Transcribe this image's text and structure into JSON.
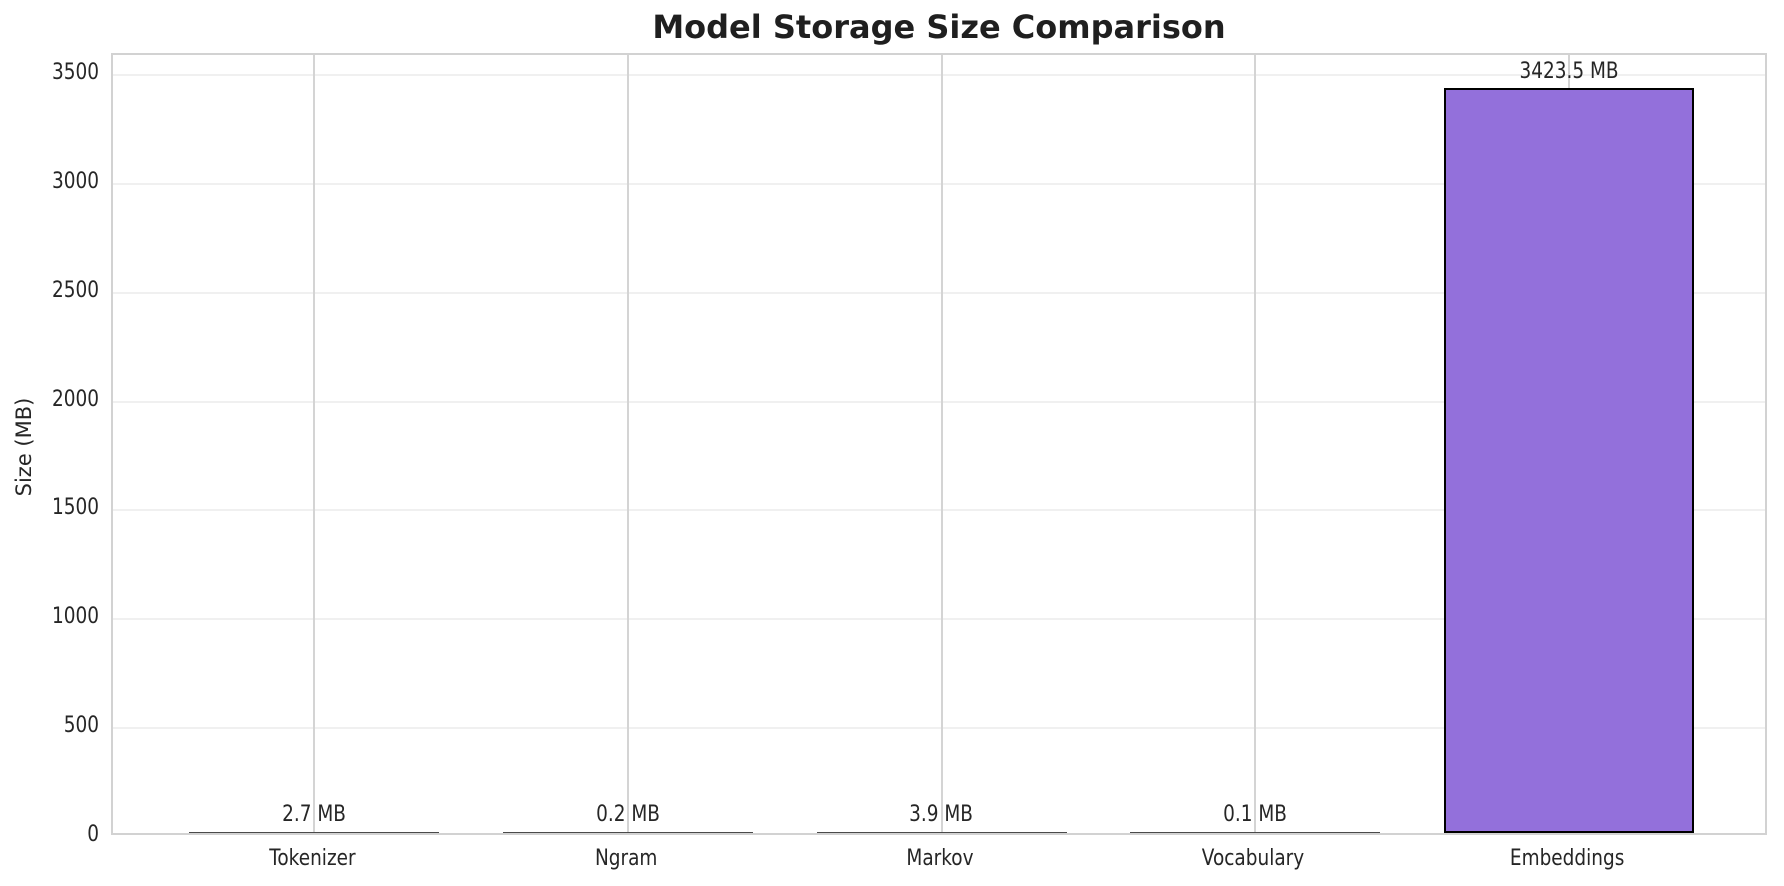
{
  "chart_data": {
    "type": "bar",
    "title": "Model Storage Size Comparison",
    "xlabel": "",
    "ylabel": "Size (MB)",
    "categories": [
      "Tokenizer",
      "Ngram",
      "Markov",
      "Vocabulary",
      "Embeddings"
    ],
    "values": [
      2.7,
      0.2,
      3.9,
      0.1,
      3423.5
    ],
    "value_labels": [
      "2.7 MB",
      "0.2 MB",
      "3.9 MB",
      "0.1 MB",
      "3423.5 MB"
    ],
    "yticks": [
      0,
      500,
      1000,
      1500,
      2000,
      2500,
      3000,
      3500
    ],
    "ytick_labels": [
      "0",
      "500",
      "1000",
      "1500",
      "2000",
      "2500",
      "3000",
      "3500"
    ],
    "ylim": [
      0,
      3592
    ],
    "grid": true,
    "legend_position": "none",
    "bar_color": "#9370DB",
    "bar_edge_color": "#000000",
    "grid_color_horizontal": "#f0f0f0",
    "grid_color_vertical": "#d4d4d4",
    "text_color": "#262626",
    "background_color": "#ffffff"
  }
}
